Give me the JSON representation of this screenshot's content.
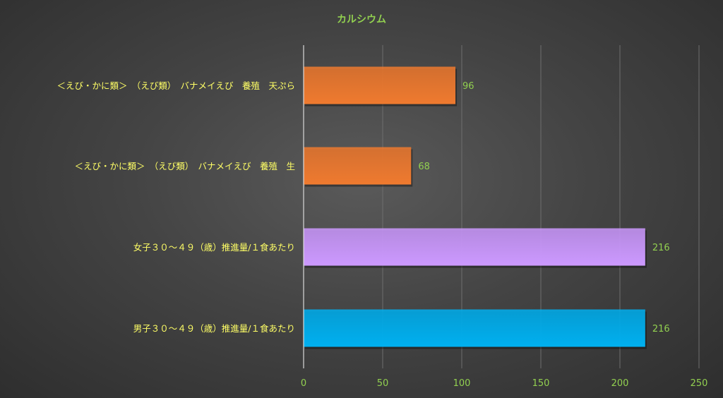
{
  "chart_data": {
    "type": "bar",
    "orientation": "horizontal",
    "title": "カルシウム",
    "categories": [
      "＜えび・かに類＞　（えび類）　バナメイえび　養殖　天ぷら",
      "＜えび・かに類＞　（えび類）　バナメイえび　養殖　生",
      "女子３０～４９（歳）推進量/１食あたり",
      "男子３０～４９（歳）推進量/１食あたり"
    ],
    "values": [
      96,
      68,
      216,
      216
    ],
    "data_labels": [
      "96",
      "68",
      "216",
      "216"
    ],
    "bar_colors": [
      "#ef7a2f",
      "#ef7a2f",
      "#cc99ff",
      "#00b0f0"
    ],
    "xlim": [
      0,
      250
    ],
    "xticks": [
      0,
      50,
      100,
      150,
      200,
      250
    ],
    "xtick_labels": [
      "0",
      "50",
      "100",
      "150",
      "200",
      "250"
    ],
    "grid": true,
    "legend": "none"
  },
  "colors": {
    "title": "#92d050",
    "category_text": "#ffff66",
    "tick_text": "#92d050",
    "data_label_text": "#92d050",
    "gridline": "#6e6e6e",
    "axis_line": "#d9d9d9"
  }
}
